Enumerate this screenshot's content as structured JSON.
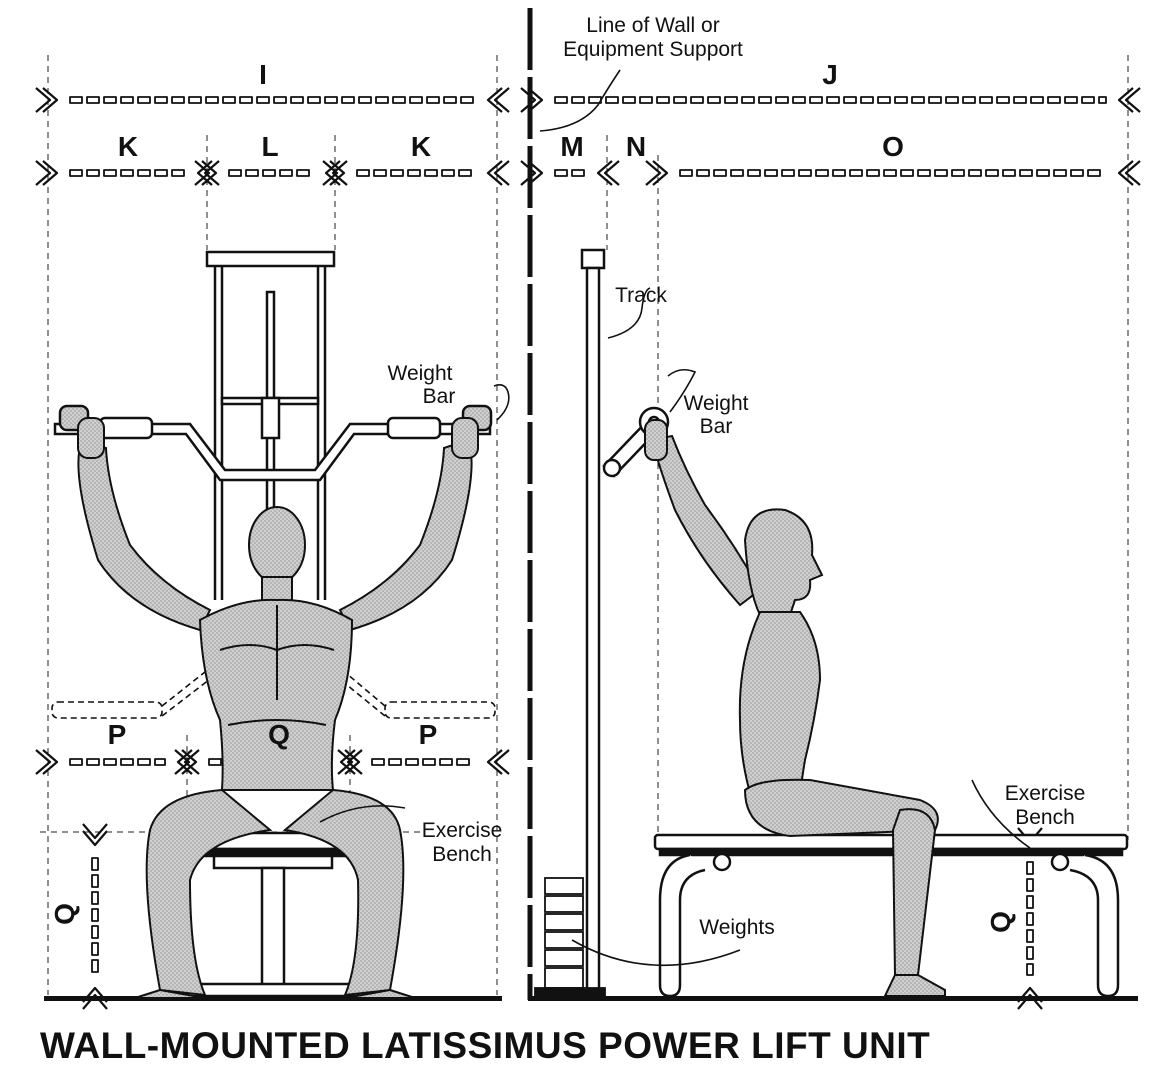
{
  "title": "WALL-MOUNTED LATISSIMUS POWER LIFT UNIT",
  "dimensions": {
    "I": "I",
    "J": "J",
    "K_left": "K",
    "L": "L",
    "K_right": "K",
    "M": "M",
    "N": "N",
    "O": "O",
    "P_left": "P",
    "Q_mid": "Q",
    "P_right": "P",
    "Q_front": "Q",
    "Q_side": "Q"
  },
  "labels": {
    "wall_line_1": "Line of Wall or",
    "wall_line_2": "Equipment Support",
    "track": "Track",
    "weight_bar_front_1": "Weight",
    "weight_bar_front_2": "Bar",
    "weight_bar_side_1": "Weight",
    "weight_bar_side_2": "Bar",
    "bench_front_1": "Exercise",
    "bench_front_2": "Bench",
    "bench_side_1": "Exercise",
    "bench_side_2": "Bench",
    "weights": "Weights"
  },
  "colors": {
    "ink": "#111111",
    "figure_fill": "#c4c4c4",
    "background": "#ffffff"
  }
}
